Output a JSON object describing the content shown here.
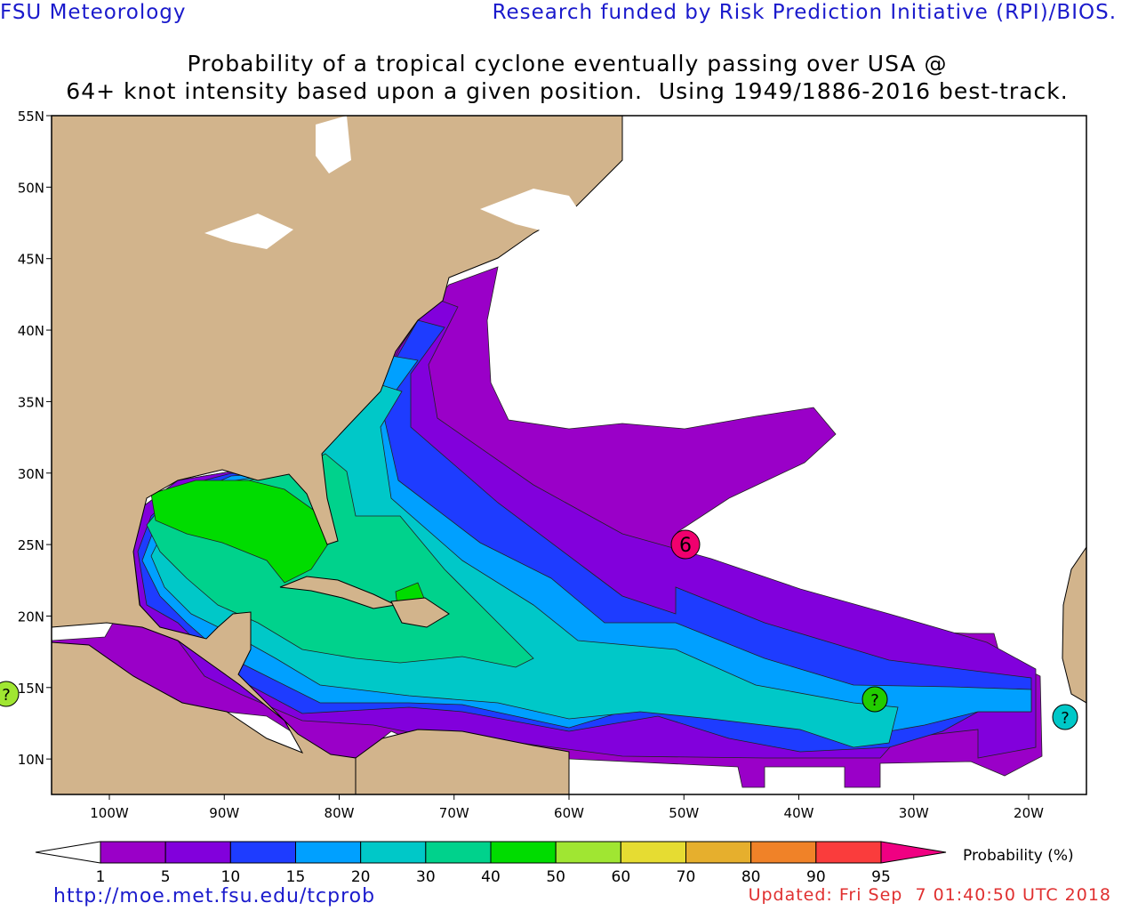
{
  "header": {
    "left": "FSU Meteorology",
    "right": "Research funded by Risk Prediction Initiative (RPI)/BIOS."
  },
  "title": [
    "Probability of a tropical cyclone eventually passing over USA @",
    "64+ knot intensity based upon a given position.  Using 1949/1886-2016 best-track."
  ],
  "map": {
    "lat_labels": [
      "55N",
      "50N",
      "45N",
      "40N",
      "35N",
      "30N",
      "25N",
      "20N",
      "15N",
      "10N"
    ],
    "lon_labels": [
      "100W",
      "90W",
      "80W",
      "70W",
      "60W",
      "50W",
      "40W",
      "30W",
      "20W"
    ],
    "storms": [
      "6",
      "?",
      "?",
      "?"
    ]
  },
  "legend": {
    "title": "Probability (%)",
    "levels": [
      1,
      5,
      10,
      15,
      20,
      30,
      40,
      50,
      60,
      70,
      80,
      90,
      95
    ]
  },
  "footer": {
    "url": "http://moe.met.fsu.edu/tcprob",
    "updated": "Updated: Fri Sep  7 01:40:50 UTC 2018"
  }
}
